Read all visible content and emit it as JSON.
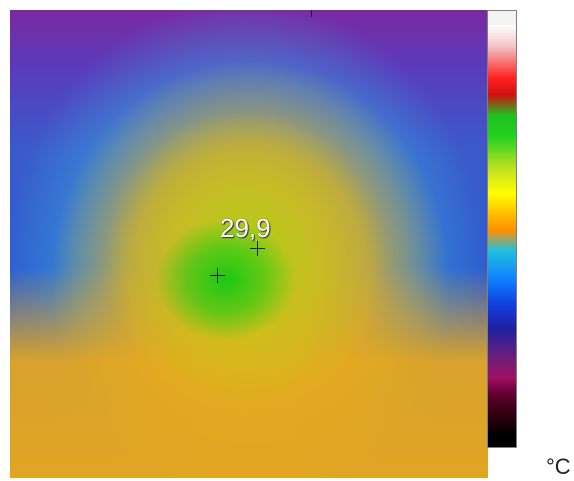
{
  "thermal_image": {
    "hot_spot_value": "29,9",
    "unit": "°C"
  },
  "colors": {
    "scale_top": "#ffffff",
    "hot": "#20c020",
    "warm": "#ffc000",
    "cool": "#1080ff",
    "cold": "#000000"
  }
}
